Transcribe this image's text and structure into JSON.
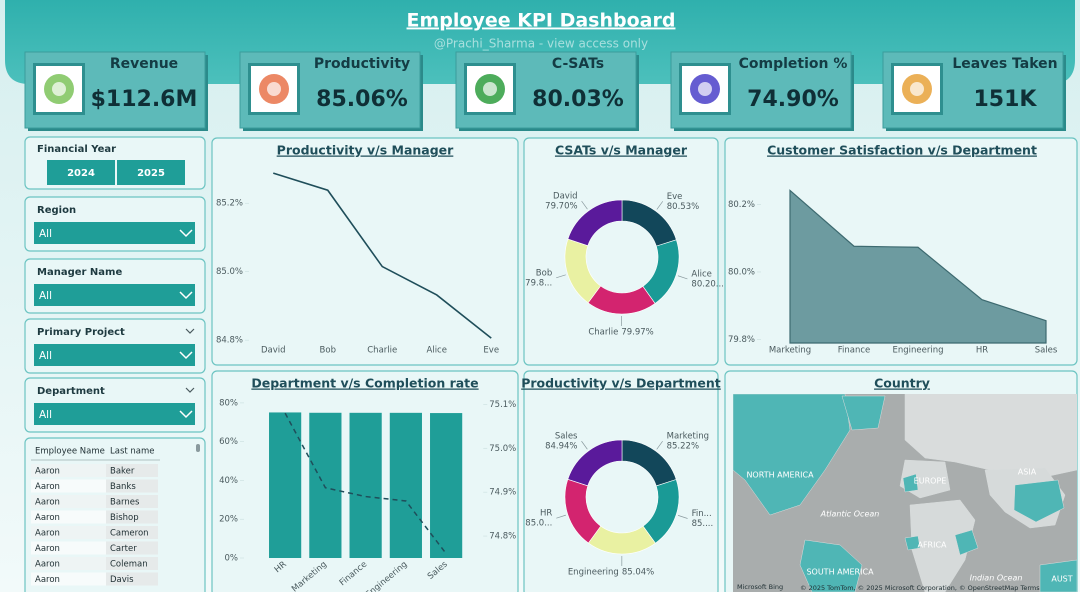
{
  "header": {
    "title": "Employee KPI Dashboard",
    "subtitle": "@Prachi_Sharma - view access only"
  },
  "kpis": [
    {
      "label": "Revenue",
      "value": "$112.6M"
    },
    {
      "label": "Productivity",
      "value": "85.06%"
    },
    {
      "label": "C-SATs",
      "value": "80.03%"
    },
    {
      "label": "Completion %",
      "value": "74.90%"
    },
    {
      "label": "Leaves Taken",
      "value": "151K"
    }
  ],
  "filters": {
    "financial_year": {
      "label": "Financial Year",
      "options": [
        "2024",
        "2025"
      ]
    },
    "dropdowns": [
      {
        "label": "Region",
        "value": "All"
      },
      {
        "label": "Manager Name",
        "value": "All"
      },
      {
        "label": "Primary Project",
        "value": "All"
      },
      {
        "label": "Department",
        "value": "All"
      }
    ]
  },
  "table": {
    "columns": [
      "Employee Name",
      "Last name"
    ],
    "rows": [
      [
        "Aaron",
        "Baker"
      ],
      [
        "Aaron",
        "Banks"
      ],
      [
        "Aaron",
        "Barnes"
      ],
      [
        "Aaron",
        "Bishop"
      ],
      [
        "Aaron",
        "Cameron"
      ],
      [
        "Aaron",
        "Carter"
      ],
      [
        "Aaron",
        "Coleman"
      ],
      [
        "Aaron",
        "Davis"
      ]
    ]
  },
  "chart_data": [
    {
      "type": "line",
      "title": "Productivity v/s Manager",
      "categories": [
        "David",
        "Bob",
        "Charlie",
        "Alice",
        "Eve"
      ],
      "values": [
        85.288,
        85.238,
        85.015,
        84.932,
        84.806
      ],
      "color": "#1f4e5a",
      "ylim": [
        84.78,
        85.3
      ],
      "yticks": [
        {
          "value": 84.8,
          "label": "84.8%"
        },
        {
          "value": 85.0,
          "label": "85.0%"
        },
        {
          "value": 85.2,
          "label": "85.2%"
        }
      ]
    },
    {
      "type": "donut",
      "title": "CSATs v/s Manager",
      "categories": [
        "Eve",
        "Alice",
        "Charlie",
        "Bob",
        "David"
      ],
      "values": [
        80.53,
        80.2,
        79.97,
        79.8,
        79.7
      ],
      "value_labels": [
        "80.53%",
        "80.20...",
        "79.97%",
        "79.8...",
        "79.70%"
      ],
      "colors": [
        "#12475a",
        "#1a9a96",
        "#d3246f",
        "#e9f1a2",
        "#5a1a9b"
      ]
    },
    {
      "type": "area",
      "title": "Customer Satisfaction v/s Department",
      "categories": [
        "Marketing",
        "Finance",
        "Engineering",
        "HR",
        "Sales"
      ],
      "values": [
        80.241,
        80.076,
        80.073,
        79.918,
        79.856
      ],
      "color": "#5f9096",
      "ylim": [
        79.79,
        80.26
      ],
      "yticks": [
        {
          "value": 79.8,
          "label": "79.8%"
        },
        {
          "value": 80.0,
          "label": "80.0%"
        },
        {
          "value": 80.2,
          "label": "80.2%"
        }
      ]
    },
    {
      "type": "bar_line",
      "title": "Department v/s Completion rate",
      "categories": [
        "HR",
        "Marketing",
        "Finance",
        "Engineering",
        "Sales"
      ],
      "series": [
        {
          "type": "bar",
          "color": "#1f9e98",
          "values": [
            75.08,
            74.91,
            74.89,
            74.88,
            74.76
          ]
        },
        {
          "type": "line",
          "axis": "y2",
          "color": "#1f4e5a",
          "dashed": true,
          "values": [
            75.08,
            74.91,
            74.89,
            74.88,
            74.76
          ]
        }
      ],
      "ylim": [
        0,
        81.5
      ],
      "yticks": [
        {
          "value": 0,
          "label": "0%"
        },
        {
          "value": 20,
          "label": "20%"
        },
        {
          "value": 40,
          "label": "40%"
        },
        {
          "value": 60,
          "label": "60%"
        },
        {
          "value": 80,
          "label": "80%"
        }
      ],
      "y2lim": [
        74.75,
        75.11
      ],
      "y2ticks": [
        {
          "value": 74.8,
          "label": "74.8%"
        },
        {
          "value": 74.9,
          "label": "74.9%"
        },
        {
          "value": 75.0,
          "label": "75.0%"
        },
        {
          "value": 75.1,
          "label": "75.1%"
        }
      ]
    },
    {
      "type": "donut",
      "title": "Productivity v/s Department",
      "categories": [
        "Marketing",
        "Fin...",
        "Engineering",
        "HR",
        "Sales"
      ],
      "values": [
        85.22,
        85.1,
        85.04,
        85.03,
        84.94
      ],
      "value_labels": [
        "85.22%",
        "85....",
        "85.04%",
        "85.0...",
        "84.94%"
      ],
      "colors": [
        "#12475a",
        "#1a9a96",
        "#e9f1a2",
        "#d3246f",
        "#5a1a9b"
      ]
    }
  ],
  "map": {
    "title": "Country",
    "labels": [
      "NORTH AMERICA",
      "EUROPE",
      "ASIA",
      "Atlantic Ocean",
      "AFRICA",
      "SOUTH AMERICA",
      "Indian Ocean",
      "AUST"
    ],
    "logo": "Microsoft Bing",
    "attribution": "© 2025 TomTom, © 2025 Microsoft Corporation, © OpenStreetMap  Terms"
  }
}
